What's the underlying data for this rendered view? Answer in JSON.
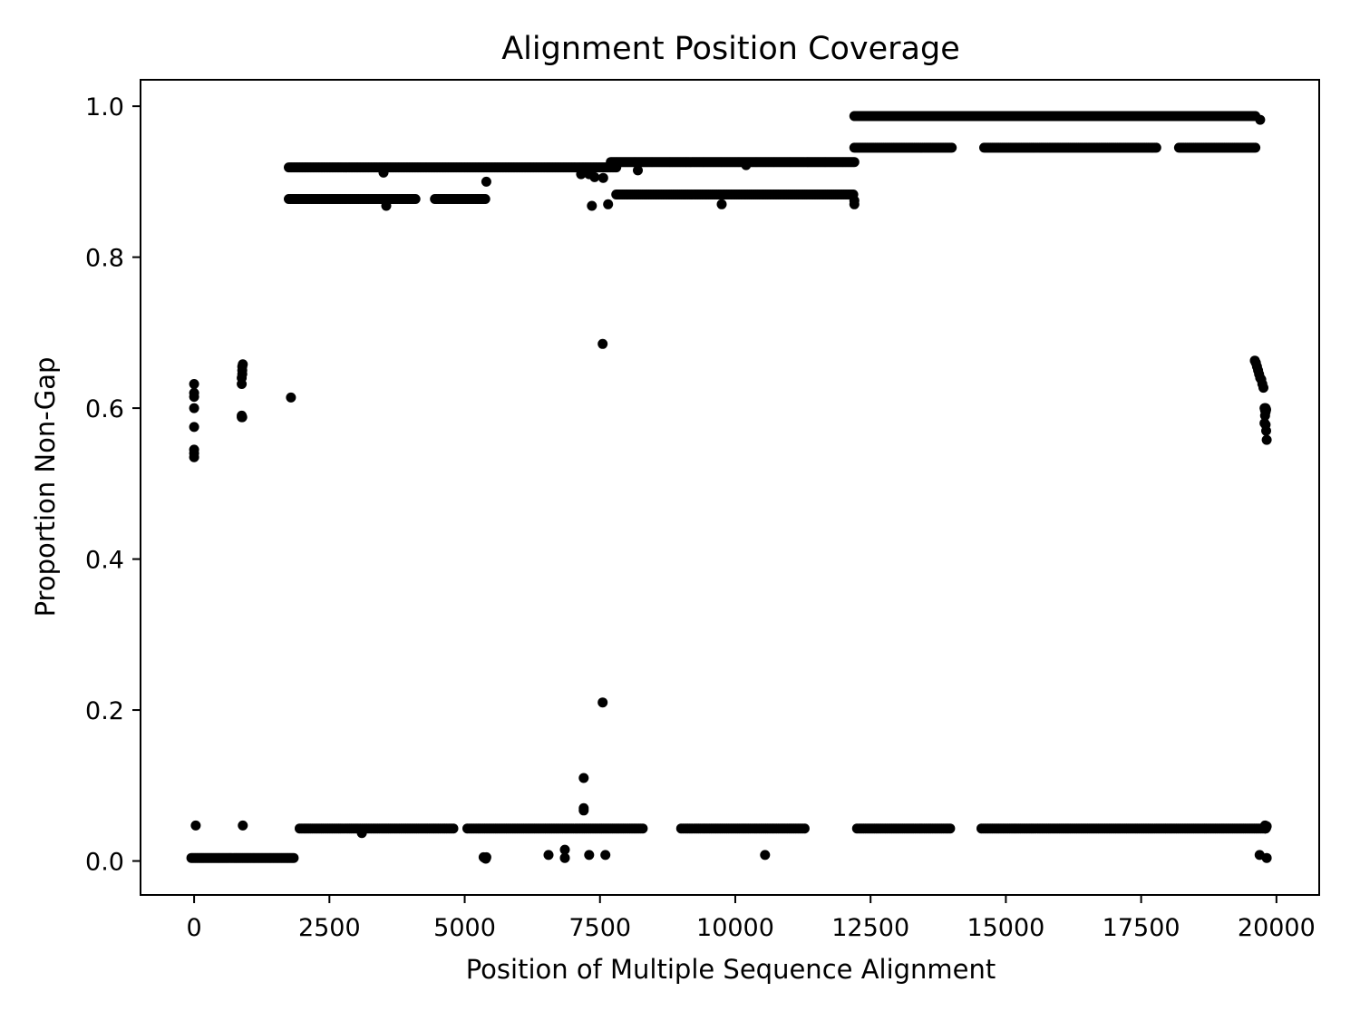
{
  "chart_data": {
    "type": "scatter",
    "title": "Alignment Position Coverage",
    "xlabel": "Position of Multiple Sequence Alignment",
    "ylabel": "Proportion Non-Gap",
    "xlim": [
      -990,
      20790
    ],
    "ylim": [
      -0.045,
      1.035
    ],
    "xticks": [
      0,
      2500,
      5000,
      7500,
      10000,
      12500,
      15000,
      17500,
      20000
    ],
    "xtick_labels": [
      "0",
      "2500",
      "5000",
      "7500",
      "10000",
      "12500",
      "15000",
      "17500",
      "20000"
    ],
    "yticks": [
      0.0,
      0.2,
      0.4,
      0.6,
      0.8,
      1.0
    ],
    "ytick_labels": [
      "0.0",
      "0.2",
      "0.4",
      "0.6",
      "0.8",
      "1.0"
    ],
    "grid": false,
    "legend": "none",
    "marker_color": "#000000",
    "series": [
      {
        "x": [
          0,
          0,
          0,
          0,
          0,
          0,
          0,
          0,
          30,
          880,
          880,
          880,
          880,
          890,
          890,
          890,
          900,
          900,
          1790,
          7550,
          7550,
          7200,
          7200,
          7200,
          6850,
          6550,
          6850,
          7300,
          7600,
          10550,
          5350,
          5370,
          5390,
          5400,
          3100,
          19600,
          19620,
          19640,
          19660,
          19680,
          19700,
          19720,
          19740,
          19760,
          19780,
          19790,
          19800,
          19810,
          19820,
          19780,
          19800,
          19810,
          19800,
          19790,
          19790,
          19690,
          19820,
          19780,
          19790,
          19810,
          19790,
          19820,
          19800,
          19790,
          19800,
          19810,
          19800,
          19800,
          19790,
          3550,
          3500,
          5400,
          7350,
          7560,
          7650,
          7400,
          8200,
          7250,
          7150,
          7300,
          9750,
          12200,
          12200,
          10200,
          19700,
          890
        ],
        "y": [
          0.535,
          0.54,
          0.545,
          0.575,
          0.6,
          0.615,
          0.62,
          0.632,
          0.047,
          0.588,
          0.59,
          0.632,
          0.64,
          0.645,
          0.65,
          0.655,
          0.658,
          0.047,
          0.614,
          0.685,
          0.21,
          0.11,
          0.07,
          0.067,
          0.015,
          0.008,
          0.004,
          0.008,
          0.008,
          0.008,
          0.005,
          0.004,
          0.003,
          0.005,
          0.037,
          0.663,
          0.66,
          0.655,
          0.65,
          0.645,
          0.64,
          0.638,
          0.632,
          0.627,
          0.6,
          0.597,
          0.578,
          0.57,
          0.558,
          0.58,
          0.6,
          0.598,
          0.595,
          0.6,
          0.59,
          0.008,
          0.004,
          0.044,
          0.047,
          0.044,
          0.043,
          0.046,
          0.045,
          0.044,
          0.043,
          0.045,
          0.044,
          0.043,
          0.045,
          0.868,
          0.912,
          0.9,
          0.868,
          0.905,
          0.87,
          0.906,
          0.915,
          0.912,
          0.91,
          0.91,
          0.87,
          0.87,
          0.875,
          0.922,
          0.982,
          0.588
        ]
      }
    ],
    "bands": [
      {
        "x_start": -50,
        "x_end": 1850,
        "y": 0.004,
        "step": 30
      },
      {
        "x_start": 1750,
        "x_end": 7800,
        "y": 0.919,
        "step": 25
      },
      {
        "x_start": 1750,
        "x_end": 4100,
        "y": 0.877,
        "step": 30
      },
      {
        "x_start": 4450,
        "x_end": 5400,
        "y": 0.877,
        "step": 30
      },
      {
        "x_start": 7700,
        "x_end": 12200,
        "y": 0.926,
        "step": 25
      },
      {
        "x_start": 7800,
        "x_end": 12200,
        "y": 0.883,
        "step": 30
      },
      {
        "x_start": 12200,
        "x_end": 19620,
        "y": 0.987,
        "step": 15
      },
      {
        "x_start": 12200,
        "x_end": 14000,
        "y": 0.945,
        "step": 30
      },
      {
        "x_start": 14600,
        "x_end": 17800,
        "y": 0.945,
        "step": 30
      },
      {
        "x_start": 18200,
        "x_end": 19620,
        "y": 0.945,
        "step": 30
      },
      {
        "x_start": 1950,
        "x_end": 4800,
        "y": 0.043,
        "step": 40
      },
      {
        "x_start": 5050,
        "x_end": 8300,
        "y": 0.043,
        "step": 40
      },
      {
        "x_start": 9000,
        "x_end": 11300,
        "y": 0.043,
        "step": 40
      },
      {
        "x_start": 12250,
        "x_end": 14000,
        "y": 0.043,
        "step": 40
      },
      {
        "x_start": 14550,
        "x_end": 19780,
        "y": 0.043,
        "step": 40
      }
    ]
  }
}
